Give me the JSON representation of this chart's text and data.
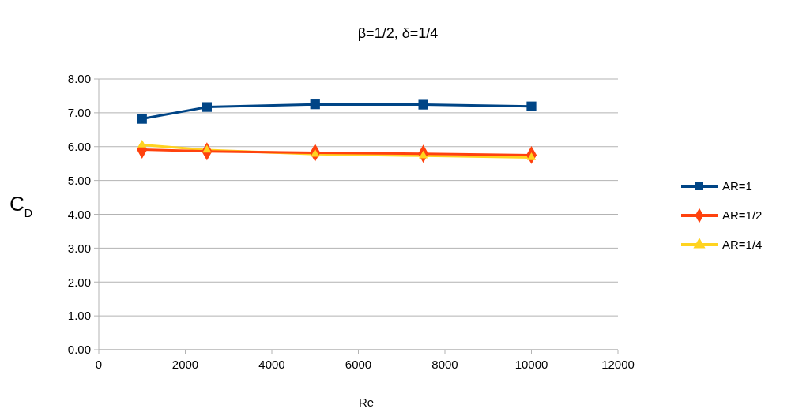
{
  "chart_data": {
    "type": "line",
    "title": "β=1/2, δ=1/4",
    "xlabel": "Re",
    "ylabel": "C$_{D}$",
    "x": [
      1000,
      2500,
      5000,
      7500,
      10000
    ],
    "series": [
      {
        "name": "AR=1",
        "color": "#004586",
        "marker": "square",
        "values": [
          6.82,
          7.17,
          7.25,
          7.24,
          7.19
        ]
      },
      {
        "name": "AR=1/2",
        "color": "#ff420e",
        "marker": "diamond",
        "values": [
          5.91,
          5.86,
          5.82,
          5.79,
          5.75
        ]
      },
      {
        "name": "AR=1/4",
        "color": "#ffd320",
        "marker": "triangle",
        "values": [
          6.05,
          5.9,
          5.78,
          5.73,
          5.68
        ]
      }
    ],
    "xlim": [
      0,
      12000
    ],
    "xticks": [
      0,
      2000,
      4000,
      6000,
      8000,
      10000,
      12000
    ],
    "ylim": [
      0,
      8
    ],
    "yticks": [
      {
        "value": 0,
        "label": "0.00"
      },
      {
        "value": 1,
        "label": "1.00"
      },
      {
        "value": 2,
        "label": "2.00"
      },
      {
        "value": 3,
        "label": "3.00"
      },
      {
        "value": 4,
        "label": "4.00"
      },
      {
        "value": 5,
        "label": "5.00"
      },
      {
        "value": 6,
        "label": "6.00"
      },
      {
        "value": 7,
        "label": "7.00"
      },
      {
        "value": 8,
        "label": "8.00"
      }
    ],
    "grid": "y",
    "legend": "right",
    "line_style": "solid"
  }
}
